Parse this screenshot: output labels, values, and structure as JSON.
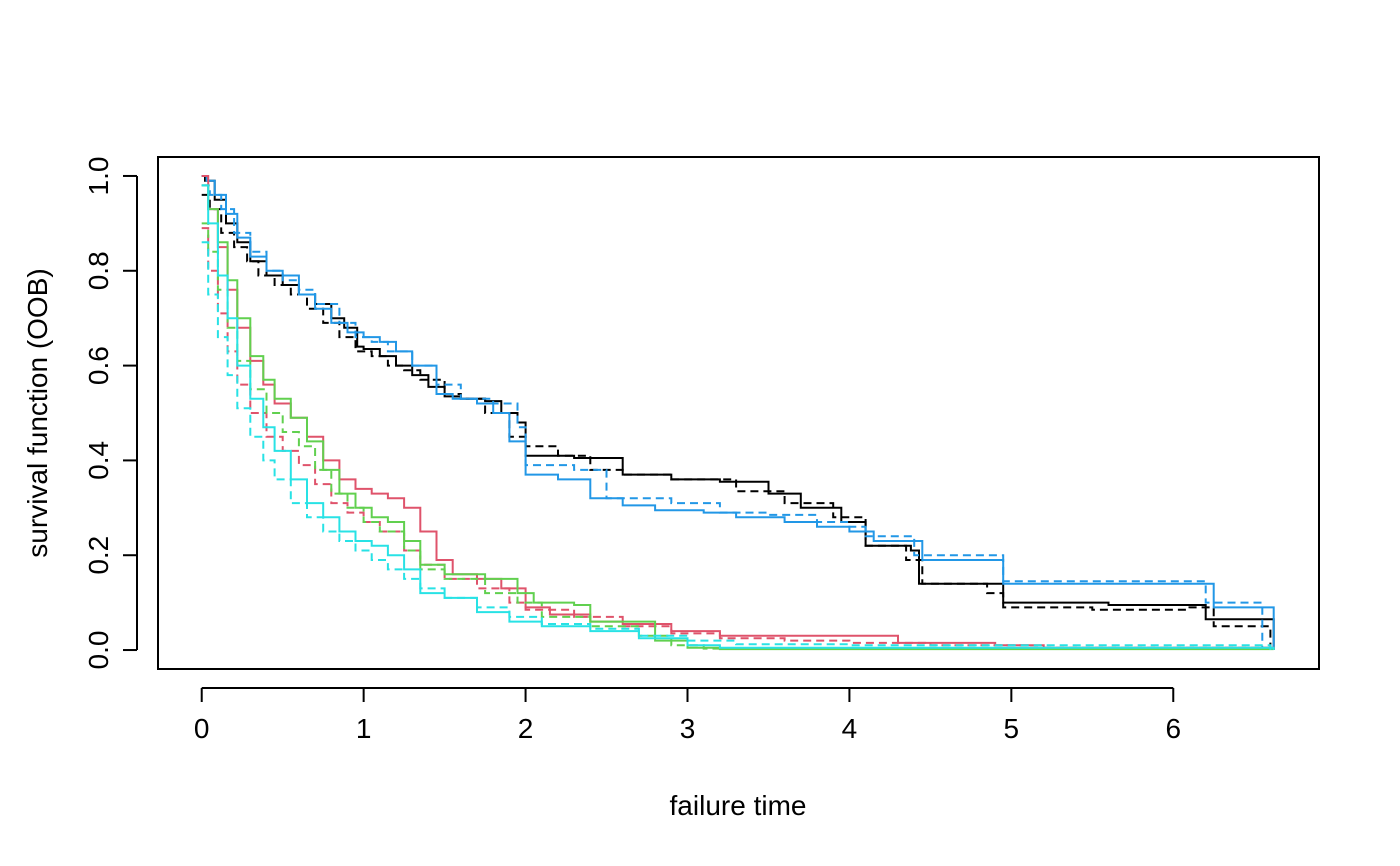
{
  "chart_data": {
    "type": "line",
    "title": "",
    "xlabel": "failure time",
    "ylabel": "survival function (OOB)",
    "xlim": [
      -0.27,
      6.9
    ],
    "ylim": [
      -0.04,
      1.04
    ],
    "xticks": [
      0,
      1,
      2,
      3,
      4,
      5,
      6
    ],
    "xtick_labels": [
      "0",
      "1",
      "2",
      "3",
      "4",
      "5",
      "6"
    ],
    "yticks": [
      0.0,
      0.2,
      0.4,
      0.6,
      0.8,
      1.0
    ],
    "ytick_labels": [
      "0.0",
      "0.2",
      "0.4",
      "0.6",
      "0.8",
      "1.0"
    ],
    "grid": false,
    "legend": "none",
    "series": [
      {
        "color": "#000000",
        "dash": "solid",
        "step": true,
        "x": [
          0,
          0.02,
          0.08,
          0.15,
          0.22,
          0.3,
          0.4,
          0.5,
          0.6,
          0.7,
          0.8,
          0.88,
          0.96,
          1.0,
          1.1,
          1.2,
          1.3,
          1.4,
          1.5,
          1.6,
          1.75,
          1.85,
          1.95,
          2.0,
          2.3,
          2.6,
          2.9,
          3.2,
          3.5,
          3.7,
          3.95,
          4.1,
          4.38,
          4.43,
          4.95,
          5.6,
          6.2,
          6.62
        ],
        "y": [
          1.0,
          0.99,
          0.95,
          0.9,
          0.86,
          0.82,
          0.79,
          0.77,
          0.75,
          0.73,
          0.7,
          0.68,
          0.64,
          0.635,
          0.62,
          0.6,
          0.58,
          0.555,
          0.535,
          0.53,
          0.525,
          0.5,
          0.48,
          0.41,
          0.405,
          0.37,
          0.36,
          0.355,
          0.33,
          0.3,
          0.27,
          0.22,
          0.21,
          0.14,
          0.1,
          0.095,
          0.065,
          0.0
        ]
      },
      {
        "color": "#000000",
        "dash": "dashed",
        "step": true,
        "x": [
          0,
          0.05,
          0.12,
          0.2,
          0.28,
          0.35,
          0.45,
          0.55,
          0.65,
          0.75,
          0.85,
          0.95,
          1.05,
          1.15,
          1.25,
          1.35,
          1.5,
          1.6,
          1.75,
          1.9,
          2.0,
          2.2,
          2.4,
          2.6,
          2.9,
          3.3,
          3.6,
          3.9,
          4.1,
          4.35,
          4.45,
          4.85,
          4.95,
          5.5,
          6.1,
          6.25,
          6.6
        ],
        "y": [
          0.96,
          0.93,
          0.88,
          0.85,
          0.82,
          0.79,
          0.77,
          0.75,
          0.72,
          0.69,
          0.66,
          0.63,
          0.62,
          0.6,
          0.59,
          0.57,
          0.54,
          0.53,
          0.5,
          0.45,
          0.43,
          0.41,
          0.38,
          0.37,
          0.36,
          0.335,
          0.31,
          0.28,
          0.22,
          0.19,
          0.14,
          0.12,
          0.09,
          0.085,
          0.09,
          0.05,
          0.0
        ]
      },
      {
        "color": "#2297E6",
        "dash": "solid",
        "step": true,
        "x": [
          0,
          0.03,
          0.08,
          0.15,
          0.22,
          0.3,
          0.4,
          0.5,
          0.6,
          0.7,
          0.8,
          0.9,
          1.0,
          1.1,
          1.2,
          1.3,
          1.45,
          1.55,
          1.7,
          1.8,
          1.9,
          2.0,
          2.2,
          2.4,
          2.6,
          2.8,
          3.1,
          3.3,
          3.6,
          3.8,
          4.0,
          4.15,
          4.45,
          4.95,
          5.6,
          6.25,
          6.62
        ],
        "y": [
          1.0,
          0.99,
          0.96,
          0.92,
          0.87,
          0.83,
          0.8,
          0.79,
          0.75,
          0.72,
          0.69,
          0.67,
          0.66,
          0.65,
          0.63,
          0.6,
          0.54,
          0.53,
          0.52,
          0.5,
          0.44,
          0.37,
          0.36,
          0.32,
          0.305,
          0.295,
          0.29,
          0.28,
          0.27,
          0.26,
          0.25,
          0.23,
          0.19,
          0.14,
          0.14,
          0.09,
          0.0
        ]
      },
      {
        "color": "#2297E6",
        "dash": "dashed",
        "step": true,
        "x": [
          0,
          0.05,
          0.12,
          0.2,
          0.3,
          0.4,
          0.5,
          0.6,
          0.7,
          0.85,
          0.95,
          1.05,
          1.15,
          1.3,
          1.45,
          1.6,
          1.8,
          1.95,
          2.0,
          2.3,
          2.5,
          2.9,
          3.2,
          3.5,
          3.8,
          4.0,
          4.1,
          4.4,
          4.8,
          4.95,
          5.4,
          6.2,
          6.55
        ],
        "y": [
          0.98,
          0.96,
          0.93,
          0.88,
          0.84,
          0.8,
          0.78,
          0.76,
          0.73,
          0.69,
          0.66,
          0.65,
          0.63,
          0.6,
          0.56,
          0.53,
          0.52,
          0.47,
          0.39,
          0.38,
          0.32,
          0.31,
          0.29,
          0.285,
          0.27,
          0.26,
          0.24,
          0.2,
          0.2,
          0.145,
          0.145,
          0.1,
          0.0
        ]
      },
      {
        "color": "#DF536B",
        "dash": "solid",
        "step": true,
        "x": [
          0,
          0.04,
          0.1,
          0.16,
          0.22,
          0.3,
          0.38,
          0.45,
          0.55,
          0.65,
          0.75,
          0.85,
          0.95,
          1.05,
          1.15,
          1.25,
          1.35,
          1.45,
          1.55,
          1.7,
          1.85,
          2.0,
          2.15,
          2.4,
          2.6,
          2.9,
          3.2,
          3.6,
          4.0,
          4.3,
          4.9,
          5.2,
          6.62
        ],
        "y": [
          1.0,
          0.93,
          0.85,
          0.76,
          0.68,
          0.61,
          0.56,
          0.52,
          0.49,
          0.45,
          0.4,
          0.36,
          0.34,
          0.33,
          0.32,
          0.3,
          0.25,
          0.19,
          0.16,
          0.15,
          0.13,
          0.09,
          0.075,
          0.06,
          0.055,
          0.04,
          0.03,
          0.03,
          0.03,
          0.015,
          0.01,
          0.005,
          0.0
        ]
      },
      {
        "color": "#DF536B",
        "dash": "dashed",
        "step": true,
        "x": [
          0,
          0.04,
          0.1,
          0.16,
          0.22,
          0.3,
          0.4,
          0.5,
          0.6,
          0.7,
          0.8,
          0.9,
          1.0,
          1.1,
          1.25,
          1.35,
          1.5,
          1.7,
          1.9,
          2.0,
          2.3,
          2.6,
          2.9,
          3.2,
          3.6,
          4.0,
          4.5,
          5.1,
          6.6
        ],
        "y": [
          0.89,
          0.8,
          0.71,
          0.63,
          0.56,
          0.5,
          0.45,
          0.42,
          0.39,
          0.35,
          0.31,
          0.29,
          0.27,
          0.25,
          0.21,
          0.18,
          0.15,
          0.13,
          0.1,
          0.085,
          0.07,
          0.05,
          0.035,
          0.025,
          0.02,
          0.015,
          0.01,
          0.005,
          0.0
        ]
      },
      {
        "color": "#61D04F",
        "dash": "solid",
        "step": true,
        "x": [
          0,
          0.04,
          0.1,
          0.16,
          0.22,
          0.3,
          0.38,
          0.45,
          0.55,
          0.65,
          0.75,
          0.85,
          0.95,
          1.05,
          1.15,
          1.25,
          1.35,
          1.5,
          1.75,
          1.95,
          2.05,
          2.3,
          2.4,
          2.8,
          3.0,
          3.2,
          6.62
        ],
        "y": [
          0.98,
          0.93,
          0.86,
          0.78,
          0.7,
          0.62,
          0.57,
          0.53,
          0.49,
          0.44,
          0.38,
          0.33,
          0.3,
          0.28,
          0.27,
          0.23,
          0.18,
          0.16,
          0.15,
          0.12,
          0.1,
          0.095,
          0.06,
          0.02,
          0.005,
          0.002,
          0.0
        ]
      },
      {
        "color": "#61D04F",
        "dash": "dashed",
        "step": true,
        "x": [
          0,
          0.04,
          0.1,
          0.16,
          0.22,
          0.3,
          0.4,
          0.5,
          0.6,
          0.7,
          0.8,
          0.9,
          1.0,
          1.1,
          1.25,
          1.35,
          1.5,
          1.75,
          1.95,
          2.1,
          2.4,
          2.7,
          2.9,
          3.1,
          6.6
        ],
        "y": [
          0.9,
          0.84,
          0.76,
          0.68,
          0.61,
          0.55,
          0.5,
          0.46,
          0.43,
          0.38,
          0.33,
          0.3,
          0.27,
          0.25,
          0.21,
          0.17,
          0.15,
          0.12,
          0.1,
          0.07,
          0.05,
          0.03,
          0.01,
          0.003,
          0.0
        ]
      },
      {
        "color": "#28E2E5",
        "dash": "solid",
        "step": true,
        "x": [
          0,
          0.04,
          0.1,
          0.16,
          0.22,
          0.3,
          0.38,
          0.45,
          0.55,
          0.65,
          0.75,
          0.85,
          0.95,
          1.05,
          1.15,
          1.25,
          1.35,
          1.5,
          1.7,
          1.9,
          2.1,
          2.4,
          2.7,
          3.0,
          3.2,
          6.62
        ],
        "y": [
          0.98,
          0.9,
          0.79,
          0.7,
          0.6,
          0.53,
          0.47,
          0.42,
          0.36,
          0.31,
          0.28,
          0.25,
          0.23,
          0.22,
          0.2,
          0.17,
          0.12,
          0.11,
          0.08,
          0.06,
          0.05,
          0.04,
          0.025,
          0.01,
          0.005,
          0.0
        ]
      },
      {
        "color": "#28E2E5",
        "dash": "dashed",
        "step": true,
        "x": [
          0,
          0.04,
          0.1,
          0.16,
          0.22,
          0.3,
          0.38,
          0.45,
          0.55,
          0.65,
          0.75,
          0.85,
          0.95,
          1.05,
          1.15,
          1.25,
          1.35,
          1.5,
          1.7,
          1.9,
          2.1,
          2.4,
          2.7,
          3.0,
          3.3,
          4.0,
          6.6
        ],
        "y": [
          0.86,
          0.75,
          0.66,
          0.58,
          0.51,
          0.45,
          0.4,
          0.36,
          0.31,
          0.28,
          0.25,
          0.23,
          0.21,
          0.19,
          0.17,
          0.15,
          0.13,
          0.11,
          0.09,
          0.07,
          0.055,
          0.045,
          0.03,
          0.02,
          0.012,
          0.01,
          0.0
        ]
      }
    ]
  }
}
